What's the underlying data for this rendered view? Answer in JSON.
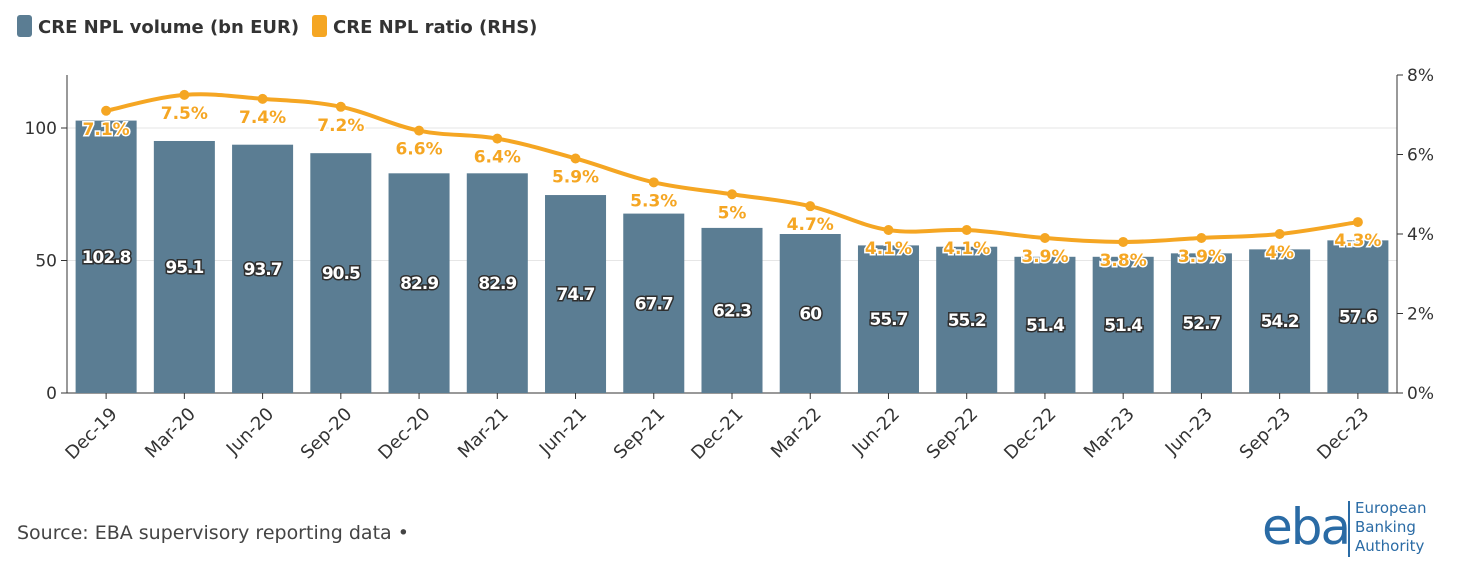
{
  "chart_data": {
    "type": "bar+line",
    "title": "",
    "categories": [
      "Dec-19",
      "Mar-20",
      "Jun-20",
      "Sep-20",
      "Dec-20",
      "Mar-21",
      "Jun-21",
      "Sep-21",
      "Dec-21",
      "Mar-22",
      "Jun-22",
      "Sep-22",
      "Dec-22",
      "Mar-23",
      "Jun-23",
      "Sep-23",
      "Dec-23"
    ],
    "series": [
      {
        "name": "CRE NPL volume (bn EUR)",
        "type": "bar",
        "axis": "left",
        "color": "#5b7d93",
        "values": [
          102.8,
          95.1,
          93.7,
          90.5,
          82.9,
          82.9,
          74.7,
          67.7,
          62.3,
          60,
          55.7,
          55.2,
          51.4,
          51.4,
          52.7,
          54.2,
          57.6
        ],
        "labels": [
          "102.8",
          "95.1",
          "93.7",
          "90.5",
          "82.9",
          "82.9",
          "74.7",
          "67.7",
          "62.3",
          "60",
          "55.7",
          "55.2",
          "51.4",
          "51.4",
          "52.7",
          "54.2",
          "57.6"
        ]
      },
      {
        "name": "CRE NPL ratio (RHS)",
        "type": "line",
        "axis": "right",
        "color": "#f5a623",
        "values": [
          7.1,
          7.5,
          7.4,
          7.2,
          6.6,
          6.4,
          5.9,
          5.3,
          5.0,
          4.7,
          4.1,
          4.1,
          3.9,
          3.8,
          3.9,
          4.0,
          4.3
        ],
        "labels": [
          "7.1%",
          "7.5%",
          "7.4%",
          "7.2%",
          "6.6%",
          "6.4%",
          "5.9%",
          "5.3%",
          "5%",
          "4.7%",
          "4.1%",
          "4.1%",
          "3.9%",
          "3.8%",
          "3.9%",
          "4%",
          "4.3%"
        ]
      }
    ],
    "y_left": {
      "ylim": [
        0,
        120
      ],
      "ticks": [
        0,
        50,
        100
      ],
      "tick_labels": [
        "0",
        "50",
        "100"
      ]
    },
    "y_right": {
      "ylim": [
        0,
        8
      ],
      "ticks": [
        0,
        2,
        4,
        6,
        8
      ],
      "tick_labels": [
        "0%",
        "2%",
        "4%",
        "6%",
        "8%"
      ]
    },
    "grid": true,
    "legend_position": "top-left"
  },
  "source": "Source: EBA supervisory reporting data •",
  "logo": {
    "mark": "eba",
    "lines": [
      "European",
      "Banking",
      "Authority"
    ]
  }
}
